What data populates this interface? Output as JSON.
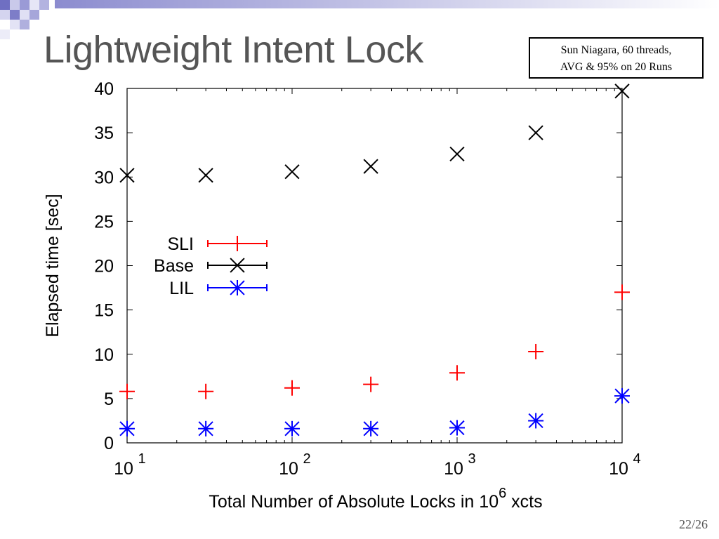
{
  "slide": {
    "title": "Lightweight Intent Lock",
    "note_lines": [
      "Sun Niagara, 60 threads,",
      "AVG & 95% on 20 Runs"
    ],
    "page_number": "22/26"
  },
  "colors": {
    "title": "#555555",
    "corner_blue": "#8c8ccf",
    "SLI": "#ff0000",
    "Base": "#000000",
    "LIL": "#0000ff"
  },
  "chart_data": {
    "type": "scatter",
    "xscale": "log",
    "xlim": [
      10,
      10000
    ],
    "ylim": [
      0,
      40
    ],
    "xlabel": "Total Number of Absolute Locks in 10^6 xcts",
    "xlabel_parts": {
      "before": "Total Number of Absolute Locks in 10",
      "superscript": "6",
      "after": " xcts"
    },
    "ylabel": "Elapsed time [sec]",
    "x_ticks": [
      {
        "value": 10,
        "base": "10",
        "exp": "1"
      },
      {
        "value": 100,
        "base": "10",
        "exp": "2"
      },
      {
        "value": 1000,
        "base": "10",
        "exp": "3"
      },
      {
        "value": 10000,
        "base": "10",
        "exp": "4"
      }
    ],
    "y_ticks": [
      0,
      5,
      10,
      15,
      20,
      25,
      30,
      35,
      40
    ],
    "legend_position": "center-left",
    "x": [
      10,
      30,
      100,
      300,
      1000,
      3000,
      10000
    ],
    "series": [
      {
        "name": "SLI",
        "marker": "plus",
        "color": "#ff0000",
        "values": [
          5.8,
          5.8,
          6.2,
          6.6,
          7.9,
          10.3,
          17.0
        ]
      },
      {
        "name": "Base",
        "marker": "cross",
        "color": "#000000",
        "values": [
          30.2,
          30.2,
          30.6,
          31.2,
          32.6,
          35.0,
          39.7
        ]
      },
      {
        "name": "LIL",
        "marker": "star",
        "color": "#0000ff",
        "values": [
          1.6,
          1.6,
          1.6,
          1.6,
          1.7,
          2.5,
          5.3
        ]
      }
    ]
  }
}
